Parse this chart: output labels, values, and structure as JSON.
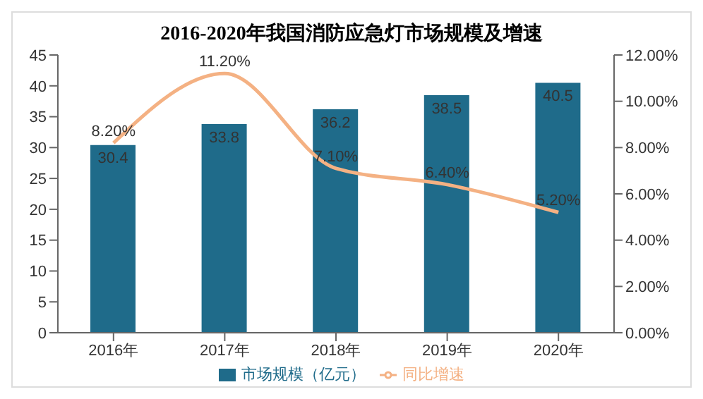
{
  "chart_data": {
    "type": "bar",
    "title": "2016-2020年我国消防应急灯市场规模及增速",
    "categories": [
      "2016年",
      "2017年",
      "2018年",
      "2019年",
      "2020年"
    ],
    "series": [
      {
        "name": "市场规模（亿元）",
        "color": "#1f6b8a",
        "values": [
          30.4,
          33.8,
          36.2,
          38.5,
          40.5
        ],
        "value_labels": [
          "30.4",
          "33.8",
          "36.2",
          "38.5",
          "40.5"
        ]
      },
      {
        "name": "同比增速",
        "type": "line",
        "axis": "y2",
        "color": "#f4b183",
        "values": [
          8.2,
          11.2,
          7.1,
          6.4,
          5.2
        ],
        "value_labels": [
          "8.20%",
          "11.20%",
          "7.10%",
          "6.40%",
          "5.20%"
        ]
      }
    ],
    "ylim": [
      0,
      45
    ],
    "yticks": [
      0,
      5,
      10,
      15,
      20,
      25,
      30,
      35,
      40,
      45
    ],
    "y2lim": [
      0,
      12
    ],
    "y2ticks": [
      {
        "value": 0,
        "label": "0.00%"
      },
      {
        "value": 2,
        "label": "2.00%"
      },
      {
        "value": 4,
        "label": "4.00%"
      },
      {
        "value": 6,
        "label": "6.00%"
      },
      {
        "value": 8,
        "label": "8.00%"
      },
      {
        "value": 10,
        "label": "10.00%"
      },
      {
        "value": 12,
        "label": "12.00%"
      }
    ],
    "grid": false,
    "legend": "bottom",
    "marker": "none",
    "line_style": "solid"
  }
}
